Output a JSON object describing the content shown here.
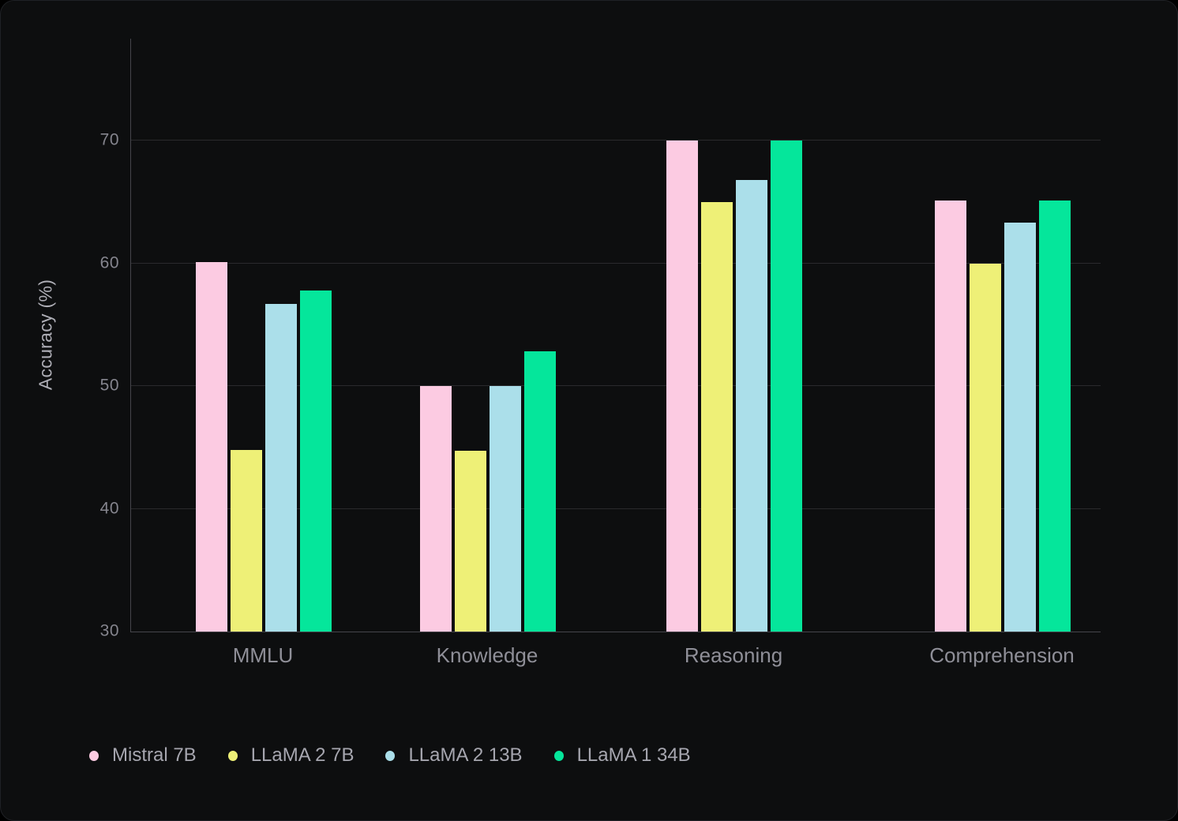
{
  "colors": {
    "page_background": "#000000",
    "card_background": "#0d0e0f",
    "gridline": "#2a2a2d",
    "axis_line": "#45454b",
    "tick_text": "#85858e",
    "category_text": "#8f8f98",
    "legend_text": "#a6a6af",
    "y_title_text": "#aeaeb6"
  },
  "chart_data": {
    "type": "bar",
    "title": "",
    "xlabel": "",
    "ylabel": "Accuracy (%)",
    "categories": [
      "MMLU",
      "Knowledge",
      "Reasoning",
      "Comprehension"
    ],
    "series": [
      {
        "name": "Mistral 7B",
        "color": "#fccbe2",
        "values": [
          60.1,
          50.0,
          70.0,
          65.1
        ]
      },
      {
        "name": "LLaMA 2 7B",
        "color": "#eef077",
        "values": [
          44.8,
          44.7,
          65.0,
          60.0
        ]
      },
      {
        "name": "LLaMA 2 13B",
        "color": "#abdfea",
        "values": [
          56.7,
          50.0,
          66.8,
          63.3
        ]
      },
      {
        "name": "LLaMA 1 34B",
        "color": "#05e69b",
        "values": [
          57.8,
          52.8,
          70.0,
          65.1
        ]
      }
    ],
    "ylim": [
      30,
      78.3
    ],
    "yticks": [
      30,
      40,
      50,
      60,
      70
    ],
    "grid": "horizontal",
    "legend_position": "bottom-left"
  }
}
